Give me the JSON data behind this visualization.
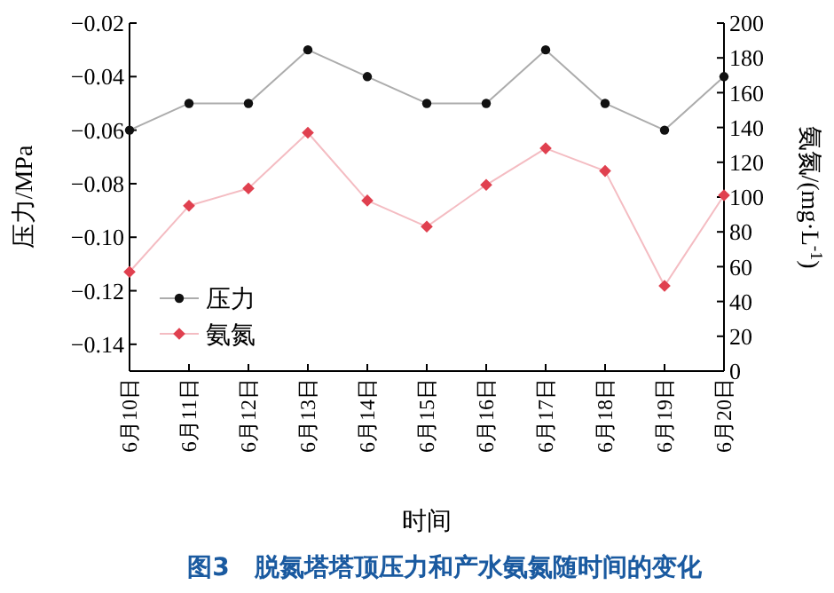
{
  "chart_data": {
    "type": "line",
    "title": "图3　脱氮塔塔顶压力和产水氨氮随时间的变化",
    "xlabel": "时间",
    "ylabel": "压力/MPa",
    "y2label": "氨氮/(mg·L$^{-1}$)",
    "categories": [
      "6月10日",
      "6月11日",
      "6月12日",
      "6月13日",
      "6月14日",
      "6月15日",
      "6月16日",
      "6月17日",
      "6月18日",
      "6月19日",
      "6月20日"
    ],
    "series": [
      {
        "name": "压力",
        "color": "#111111",
        "marker": "circle",
        "values": [
          -0.06,
          -0.05,
          -0.05,
          -0.03,
          -0.04,
          -0.05,
          -0.05,
          -0.03,
          -0.05,
          -0.06,
          -0.04
        ]
      },
      {
        "name": "氨氮",
        "color": "#e0404f",
        "marker": "diamond",
        "axis": "y2",
        "values": [
          57,
          95,
          105,
          137,
          98,
          83,
          107,
          128,
          115,
          49,
          101
        ]
      }
    ],
    "ylim": [
      -0.15,
      -0.02
    ],
    "yticks": [
      {
        "value": -0.02,
        "label": "−0.02"
      },
      {
        "value": -0.04,
        "label": "−0.04"
      },
      {
        "value": -0.06,
        "label": "−0.06"
      },
      {
        "value": -0.08,
        "label": "−0.08"
      },
      {
        "value": -0.1,
        "label": "−0.10"
      },
      {
        "value": -0.12,
        "label": "−0.12"
      },
      {
        "value": -0.14,
        "label": "−0.14"
      }
    ],
    "y2lim": [
      0,
      200
    ],
    "y2ticks": [
      0,
      20,
      40,
      60,
      80,
      100,
      120,
      140,
      160,
      180,
      200
    ],
    "legend": "bottom left",
    "grid": false
  }
}
